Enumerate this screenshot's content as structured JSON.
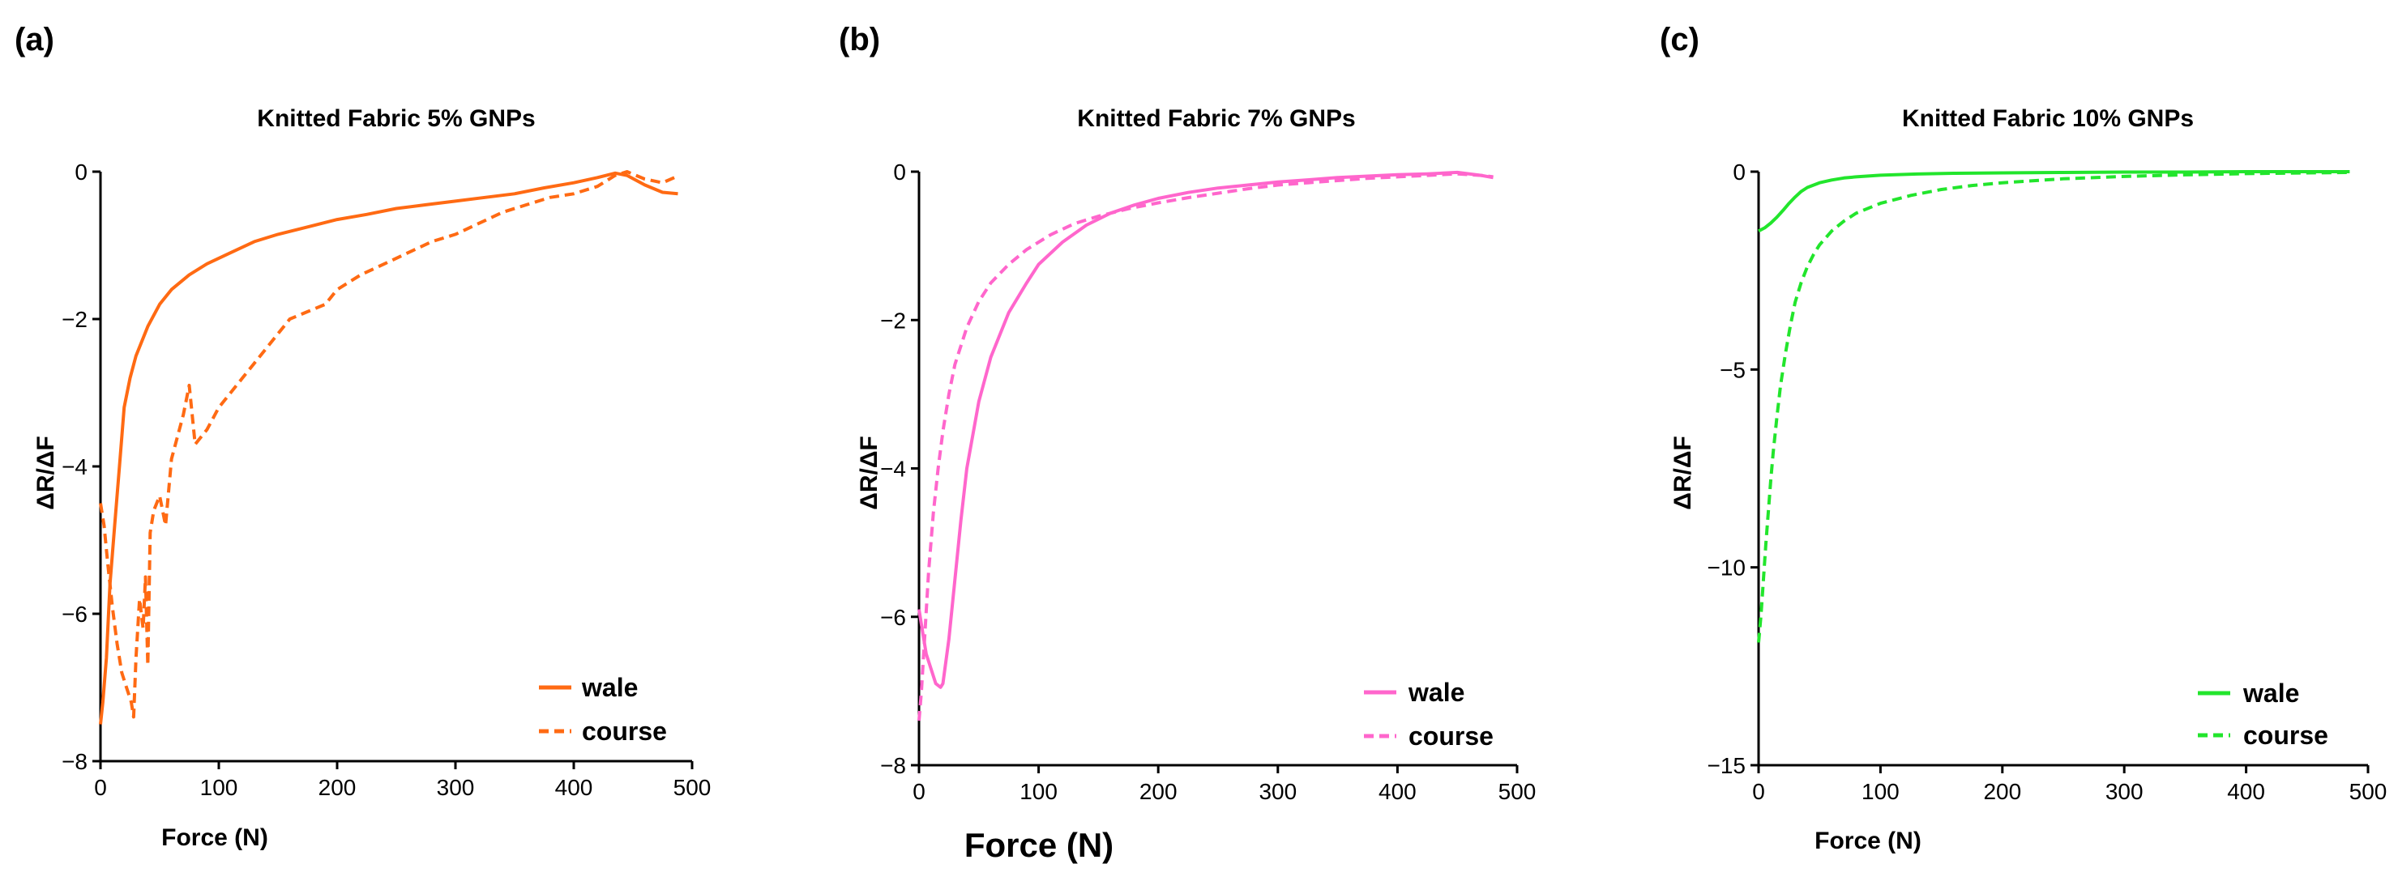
{
  "chart_data": [
    {
      "panel": "(a)",
      "type": "line",
      "title": "Knitted Fabric 5% GNPs",
      "xlabel": "Force (N)",
      "ylabel": "ΔR/ΔF",
      "xlim": [
        0,
        500
      ],
      "ylim": [
        -8,
        0
      ],
      "xticks": [
        0,
        100,
        200,
        300,
        400,
        500
      ],
      "yticks": [
        0,
        -2,
        -4,
        -6,
        -8
      ],
      "grid": false,
      "legend": "bottom-right",
      "color": "#ff6a13",
      "series": [
        {
          "name": "wale",
          "style": "solid",
          "x": [
            0,
            2,
            5,
            8,
            12,
            16,
            20,
            25,
            30,
            40,
            50,
            60,
            75,
            90,
            110,
            130,
            150,
            175,
            200,
            225,
            250,
            275,
            300,
            325,
            350,
            375,
            400,
            420,
            435,
            445,
            460,
            475,
            488
          ],
          "y": [
            -7.5,
            -7.2,
            -6.6,
            -5.6,
            -4.8,
            -4.0,
            -3.2,
            -2.8,
            -2.5,
            -2.1,
            -1.8,
            -1.6,
            -1.4,
            -1.25,
            -1.1,
            -0.95,
            -0.85,
            -0.75,
            -0.65,
            -0.58,
            -0.5,
            -0.45,
            -0.4,
            -0.35,
            -0.3,
            -0.22,
            -0.15,
            -0.08,
            -0.02,
            -0.05,
            -0.18,
            -0.28,
            -0.3
          ]
        },
        {
          "name": "course",
          "style": "dashed",
          "x": [
            0,
            3,
            6,
            10,
            14,
            18,
            22,
            26,
            28,
            30,
            33,
            36,
            38,
            40,
            42,
            45,
            50,
            55,
            60,
            65,
            70,
            75,
            80,
            90,
            100,
            110,
            120,
            130,
            140,
            150,
            160,
            175,
            190,
            200,
            220,
            240,
            260,
            280,
            300,
            320,
            340,
            360,
            380,
            400,
            420,
            435,
            445,
            460,
            475,
            485
          ],
          "y": [
            -4.5,
            -4.8,
            -5.3,
            -5.9,
            -6.4,
            -6.8,
            -7.0,
            -7.2,
            -7.4,
            -6.6,
            -5.8,
            -6.2,
            -5.5,
            -6.7,
            -4.9,
            -4.6,
            -4.4,
            -4.8,
            -3.9,
            -3.6,
            -3.3,
            -2.9,
            -3.7,
            -3.5,
            -3.2,
            -3.0,
            -2.8,
            -2.6,
            -2.4,
            -2.2,
            -2.0,
            -1.9,
            -1.8,
            -1.6,
            -1.4,
            -1.25,
            -1.1,
            -0.95,
            -0.85,
            -0.7,
            -0.55,
            -0.45,
            -0.35,
            -0.3,
            -0.2,
            -0.05,
            0.0,
            -0.1,
            -0.15,
            -0.08
          ]
        }
      ]
    },
    {
      "panel": "(b)",
      "type": "line",
      "title": "Knitted Fabric 7% GNPs",
      "xlabel": "Force (N)",
      "ylabel": "ΔR/ΔF",
      "xlim": [
        0,
        500
      ],
      "ylim": [
        -8,
        0
      ],
      "xticks": [
        0,
        100,
        200,
        300,
        400,
        500
      ],
      "yticks": [
        0,
        -2,
        -4,
        -6,
        -8
      ],
      "grid": false,
      "legend": "bottom-right",
      "color": "#ff66cc",
      "series": [
        {
          "name": "wale",
          "style": "solid",
          "x": [
            0,
            3,
            6,
            10,
            14,
            18,
            20,
            25,
            30,
            35,
            40,
            50,
            60,
            75,
            90,
            100,
            120,
            140,
            160,
            180,
            200,
            225,
            250,
            275,
            300,
            325,
            350,
            375,
            400,
            425,
            450,
            470,
            480
          ],
          "y": [
            -5.9,
            -6.2,
            -6.5,
            -6.7,
            -6.9,
            -6.95,
            -6.9,
            -6.3,
            -5.5,
            -4.7,
            -4.0,
            -3.1,
            -2.5,
            -1.9,
            -1.5,
            -1.25,
            -0.95,
            -0.72,
            -0.56,
            -0.45,
            -0.36,
            -0.28,
            -0.22,
            -0.18,
            -0.14,
            -0.11,
            -0.08,
            -0.06,
            -0.04,
            -0.03,
            -0.01,
            -0.05,
            -0.08
          ]
        },
        {
          "name": "course",
          "style": "dashed",
          "x": [
            0,
            2,
            5,
            8,
            12,
            16,
            20,
            25,
            30,
            40,
            50,
            60,
            75,
            90,
            110,
            130,
            150,
            175,
            200,
            225,
            250,
            275,
            300,
            325,
            350,
            375,
            400,
            425,
            450,
            470,
            480
          ],
          "y": [
            -7.4,
            -7.0,
            -6.2,
            -5.4,
            -4.6,
            -4.0,
            -3.5,
            -3.0,
            -2.6,
            -2.1,
            -1.75,
            -1.5,
            -1.25,
            -1.05,
            -0.85,
            -0.7,
            -0.6,
            -0.5,
            -0.42,
            -0.35,
            -0.29,
            -0.23,
            -0.18,
            -0.15,
            -0.12,
            -0.09,
            -0.07,
            -0.05,
            -0.03,
            -0.05,
            -0.07
          ]
        }
      ]
    },
    {
      "panel": "(c)",
      "type": "line",
      "title": "Knitted Fabric 10% GNPs",
      "xlabel": "Force (N)",
      "ylabel": "ΔR/ΔF",
      "xlim": [
        0,
        500
      ],
      "ylim": [
        -15,
        0
      ],
      "xticks": [
        0,
        100,
        200,
        300,
        400,
        500
      ],
      "yticks": [
        0,
        -5,
        -10,
        -15
      ],
      "grid": false,
      "legend": "bottom-right",
      "color": "#22e52c",
      "series": [
        {
          "name": "wale",
          "style": "solid",
          "x": [
            0,
            5,
            10,
            15,
            20,
            25,
            30,
            35,
            40,
            50,
            60,
            70,
            80,
            100,
            130,
            160,
            200,
            250,
            300,
            350,
            400,
            450,
            485
          ],
          "y": [
            -1.5,
            -1.42,
            -1.3,
            -1.15,
            -0.98,
            -0.8,
            -0.64,
            -0.5,
            -0.4,
            -0.28,
            -0.21,
            -0.16,
            -0.13,
            -0.09,
            -0.06,
            -0.04,
            -0.03,
            -0.02,
            -0.01,
            -0.01,
            0.0,
            0.0,
            0.0
          ]
        },
        {
          "name": "course",
          "style": "dashed",
          "x": [
            0,
            2,
            4,
            6,
            8,
            10,
            12,
            15,
            18,
            22,
            26,
            30,
            35,
            40,
            45,
            50,
            60,
            70,
            80,
            100,
            125,
            150,
            175,
            200,
            250,
            300,
            350,
            400,
            450,
            485
          ],
          "y": [
            -11.9,
            -11.2,
            -10.3,
            -9.4,
            -8.6,
            -7.8,
            -7.1,
            -6.2,
            -5.4,
            -4.6,
            -3.9,
            -3.3,
            -2.8,
            -2.4,
            -2.1,
            -1.85,
            -1.5,
            -1.25,
            -1.05,
            -0.8,
            -0.6,
            -0.45,
            -0.35,
            -0.28,
            -0.18,
            -0.12,
            -0.08,
            -0.05,
            -0.03,
            -0.02
          ]
        }
      ]
    }
  ]
}
